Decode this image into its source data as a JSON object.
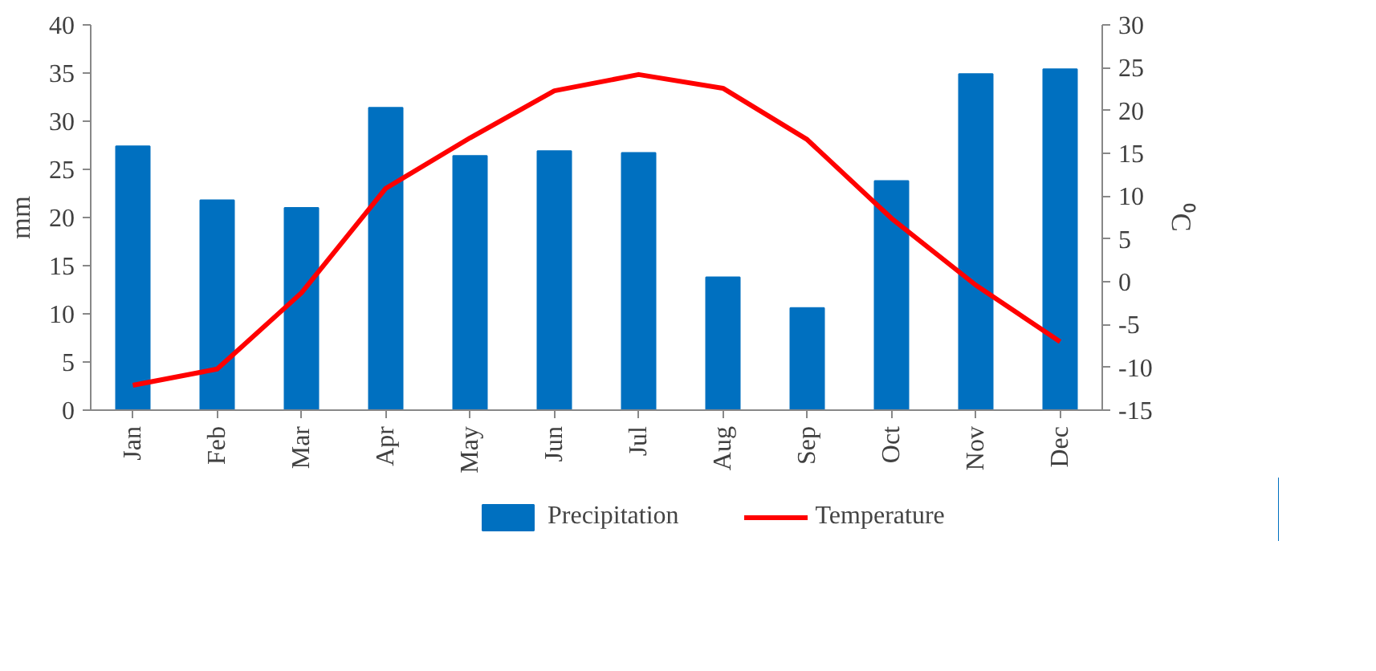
{
  "chart_data": {
    "type": "bar",
    "categories": [
      "Jan",
      "Feb",
      "Mar",
      "Apr",
      "May",
      "Jun",
      "Jul",
      "Aug",
      "Sep",
      "Oct",
      "Nov",
      "Dec"
    ],
    "series": [
      {
        "name": "Precipitation",
        "type": "bar",
        "color": "#0070c0",
        "values": [
          27.4,
          21.8,
          21.0,
          31.4,
          26.4,
          26.9,
          26.7,
          13.8,
          10.6,
          23.8,
          34.9,
          35.4
        ]
      },
      {
        "name": "Temperature",
        "type": "line",
        "axis": "y2",
        "color": "#ff0000",
        "values": [
          -12.1,
          -10.2,
          -1.3,
          10.9,
          16.8,
          22.3,
          24.2,
          22.6,
          16.6,
          7.4,
          -0.4,
          -7.0
        ]
      }
    ],
    "ylabel": "mm",
    "y2label": "⁰C",
    "ylim": [
      0,
      40
    ],
    "yticks": [
      0,
      5,
      10,
      15,
      20,
      25,
      30,
      35,
      40
    ],
    "y2lim": [
      -15,
      30
    ],
    "y2ticks": [
      -15,
      -10,
      -5,
      0,
      5,
      10,
      15,
      20,
      25,
      30
    ],
    "grid": false,
    "legend": "bottom"
  }
}
